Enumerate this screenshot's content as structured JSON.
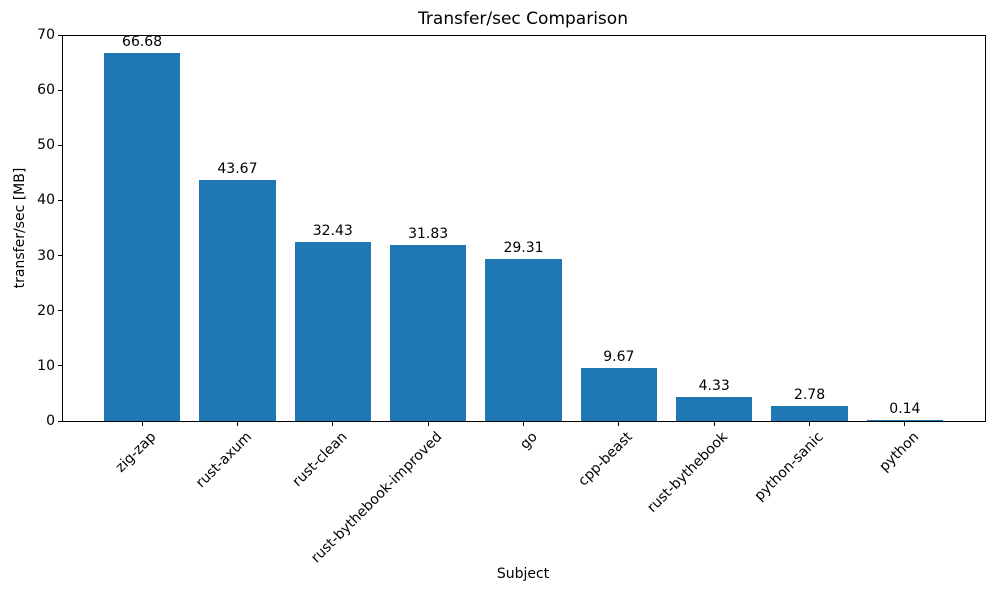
{
  "chart_data": {
    "type": "bar",
    "title": "Transfer/sec Comparison",
    "xlabel": "Subject",
    "ylabel": "transfer/sec [MB]",
    "categories": [
      "zig-zap",
      "rust-axum",
      "rust-clean",
      "rust-bythebook-improved",
      "go",
      "cpp-beast",
      "rust-bythebook",
      "python-sanic",
      "python"
    ],
    "values": [
      66.68,
      43.67,
      32.43,
      31.83,
      29.31,
      9.67,
      4.33,
      2.78,
      0.14
    ],
    "value_labels": [
      "66.68",
      "43.67",
      "32.43",
      "31.83",
      "29.31",
      "9.67",
      "4.33",
      "2.78",
      "0.14"
    ],
    "ylim": [
      0,
      70
    ],
    "yticks": [
      0,
      10,
      20,
      30,
      40,
      50,
      60,
      70
    ],
    "bar_color": "#1f77b4",
    "text_color": "#000000",
    "background_color": "#ffffff",
    "grid": false,
    "legend_position": "none",
    "x_tick_rotation": 45
  }
}
